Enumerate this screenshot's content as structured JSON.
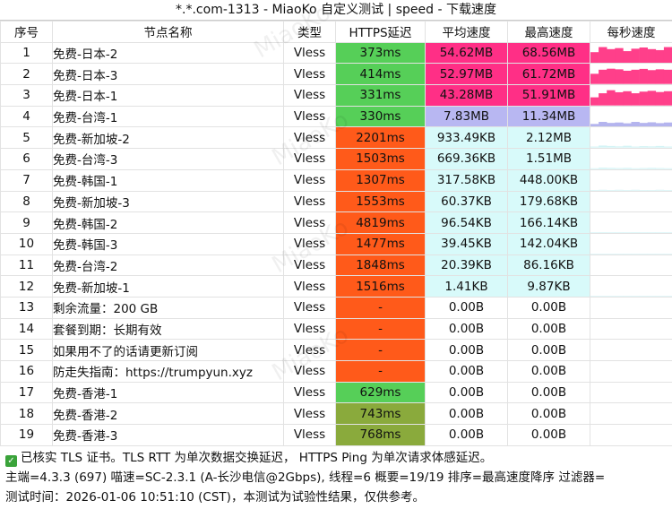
{
  "title": "*.*.com-1313 - MiaoKo 自定义测试 | speed - 下载速度",
  "watermark": "MiaoKo",
  "columns": {
    "idx": "序号",
    "name": "节点名称",
    "type": "类型",
    "latency": "HTTPS延迟",
    "avg": "平均速度",
    "max": "最高速度",
    "sps": "每秒速度"
  },
  "colors": {
    "lat_green": "#56cf58",
    "lat_red": "#ff5a1a",
    "lat_olive": "#8aaa3c",
    "spd_pink": "#ff2f86",
    "spd_lavender": "#b8b7f2",
    "spd_cyan": "#d8fafa",
    "spark_pink": "#ff3f8a",
    "spark_violet": "#b4b4ee",
    "spark_light": "#d4f4f6"
  },
  "rows": [
    {
      "idx": "1",
      "name": "免费-日本-2",
      "type": "Vless",
      "latency": "373ms",
      "lat_color": "lat_green",
      "avg": "54.62MB",
      "max": "68.56MB",
      "spd_color": "spd_pink",
      "spark": [
        0.55,
        0.8,
        0.7,
        0.75,
        0.6,
        0.72,
        0.78,
        0.7,
        0.65,
        0.8
      ]
    },
    {
      "idx": "2",
      "name": "免费-日本-3",
      "type": "Vless",
      "latency": "414ms",
      "lat_color": "lat_green",
      "avg": "52.97MB",
      "max": "61.72MB",
      "spd_color": "spd_pink",
      "spark": [
        0.5,
        0.7,
        0.75,
        0.72,
        0.65,
        0.7,
        0.74,
        0.68,
        0.72,
        0.7
      ]
    },
    {
      "idx": "3",
      "name": "免费-日本-1",
      "type": "Vless",
      "latency": "331ms",
      "lat_color": "lat_green",
      "avg": "43.28MB",
      "max": "51.91MB",
      "spd_color": "spd_pink",
      "spark": [
        0.4,
        0.6,
        0.75,
        0.65,
        0.7,
        0.6,
        0.68,
        0.72,
        0.66,
        0.7
      ]
    },
    {
      "idx": "4",
      "name": "免费-台湾-1",
      "type": "Vless",
      "latency": "330ms",
      "lat_color": "lat_green",
      "avg": "7.83MB",
      "max": "11.34MB",
      "spd_color": "spd_lavender",
      "spark": [
        0.15,
        0.25,
        0.2,
        0.22,
        0.18,
        0.25,
        0.2,
        0.23,
        0.19,
        0.22
      ]
    },
    {
      "idx": "5",
      "name": "免费-新加坡-2",
      "type": "Vless",
      "latency": "2201ms",
      "lat_color": "lat_red",
      "avg": "933.49KB",
      "max": "2.12MB",
      "spd_color": "spd_cyan",
      "spark": [
        0.05,
        0.1,
        0.08,
        0.06,
        0.09,
        0.05,
        0.07,
        0.06,
        0.08,
        0.05
      ]
    },
    {
      "idx": "6",
      "name": "免费-台湾-3",
      "type": "Vless",
      "latency": "1503ms",
      "lat_color": "lat_red",
      "avg": "669.36KB",
      "max": "1.51MB",
      "spd_color": "spd_cyan",
      "spark": [
        0.04,
        0.07,
        0.06,
        0.05,
        0.06,
        0.04,
        0.05,
        0.06,
        0.05,
        0.04
      ]
    },
    {
      "idx": "7",
      "name": "免费-韩国-1",
      "type": "Vless",
      "latency": "1307ms",
      "lat_color": "lat_red",
      "avg": "317.58KB",
      "max": "448.00KB",
      "spd_color": "spd_cyan",
      "spark": [
        0.03,
        0.04,
        0.03,
        0.04,
        0.03,
        0.04,
        0.03,
        0.03,
        0.04,
        0.03
      ]
    },
    {
      "idx": "8",
      "name": "免费-新加坡-3",
      "type": "Vless",
      "latency": "1553ms",
      "lat_color": "lat_red",
      "avg": "60.37KB",
      "max": "179.68KB",
      "spd_color": "spd_cyan",
      "spark": [
        0.02,
        0.03,
        0.02,
        0.02,
        0.03,
        0.02,
        0.02,
        0.02,
        0.03,
        0.02
      ]
    },
    {
      "idx": "9",
      "name": "免费-韩国-2",
      "type": "Vless",
      "latency": "4819ms",
      "lat_color": "lat_red",
      "avg": "96.54KB",
      "max": "166.14KB",
      "spd_color": "spd_cyan",
      "spark": [
        0.02,
        0.03,
        0.02,
        0.02,
        0.02,
        0.03,
        0.02,
        0.02,
        0.02,
        0.02
      ]
    },
    {
      "idx": "10",
      "name": "免费-韩国-3",
      "type": "Vless",
      "latency": "1477ms",
      "lat_color": "lat_red",
      "avg": "39.45KB",
      "max": "142.04KB",
      "spd_color": "spd_cyan",
      "spark": [
        0.02,
        0.02,
        0.02,
        0.02,
        0.02,
        0.02,
        0.02,
        0.02,
        0.02,
        0.02
      ]
    },
    {
      "idx": "11",
      "name": "免费-台湾-2",
      "type": "Vless",
      "latency": "1848ms",
      "lat_color": "lat_red",
      "avg": "20.39KB",
      "max": "86.16KB",
      "spd_color": "spd_cyan",
      "spark": [
        0.01,
        0.02,
        0.01,
        0.01,
        0.02,
        0.01,
        0.01,
        0.01,
        0.02,
        0.01
      ]
    },
    {
      "idx": "12",
      "name": "免费-新加坡-1",
      "type": "Vless",
      "latency": "1516ms",
      "lat_color": "lat_red",
      "avg": "1.41KB",
      "max": "9.87KB",
      "spd_color": "spd_cyan",
      "spark": [
        0.01,
        0.01,
        0.01,
        0.01,
        0.01,
        0.01,
        0.01,
        0.01,
        0.01,
        0.01
      ]
    },
    {
      "idx": "13",
      "name": "剩余流量：200 GB",
      "type": "Vless",
      "latency": "-",
      "lat_color": "lat_red",
      "avg": "0.00B",
      "max": "0.00B",
      "spd_color": "",
      "spark": []
    },
    {
      "idx": "14",
      "name": "套餐到期：长期有效",
      "type": "Vless",
      "latency": "-",
      "lat_color": "lat_red",
      "avg": "0.00B",
      "max": "0.00B",
      "spd_color": "",
      "spark": []
    },
    {
      "idx": "15",
      "name": "如果用不了的话请更新订阅",
      "type": "Vless",
      "latency": "-",
      "lat_color": "lat_red",
      "avg": "0.00B",
      "max": "0.00B",
      "spd_color": "",
      "spark": []
    },
    {
      "idx": "16",
      "name": "防走失指南：https://trumpyun.xyz",
      "type": "Vless",
      "latency": "-",
      "lat_color": "lat_red",
      "avg": "0.00B",
      "max": "0.00B",
      "spd_color": "",
      "spark": []
    },
    {
      "idx": "17",
      "name": "免费-香港-1",
      "type": "Vless",
      "latency": "629ms",
      "lat_color": "lat_green",
      "avg": "0.00B",
      "max": "0.00B",
      "spd_color": "",
      "spark": []
    },
    {
      "idx": "18",
      "name": "免费-香港-2",
      "type": "Vless",
      "latency": "743ms",
      "lat_color": "lat_olive",
      "avg": "0.00B",
      "max": "0.00B",
      "spd_color": "",
      "spark": []
    },
    {
      "idx": "19",
      "name": "免费-香港-3",
      "type": "Vless",
      "latency": "768ms",
      "lat_color": "lat_olive",
      "avg": "0.00B",
      "max": "0.00B",
      "spd_color": "",
      "spark": []
    }
  ],
  "footer": {
    "line1": "已核实 TLS 证书。TLS RTT 为单次数据交换延迟， HTTPS Ping 为单次请求体感延迟。",
    "line2": "主端=4.3.3 (697) 喵速=SC-2.3.1 (A-长沙电信@2Gbps), 线程=6 概要=19/19 排序=最高速度降序 过滤器=",
    "line3": "测试时间：2026-01-06 10:51:10 (CST)，本测试为试验性结果，仅供参考。"
  }
}
